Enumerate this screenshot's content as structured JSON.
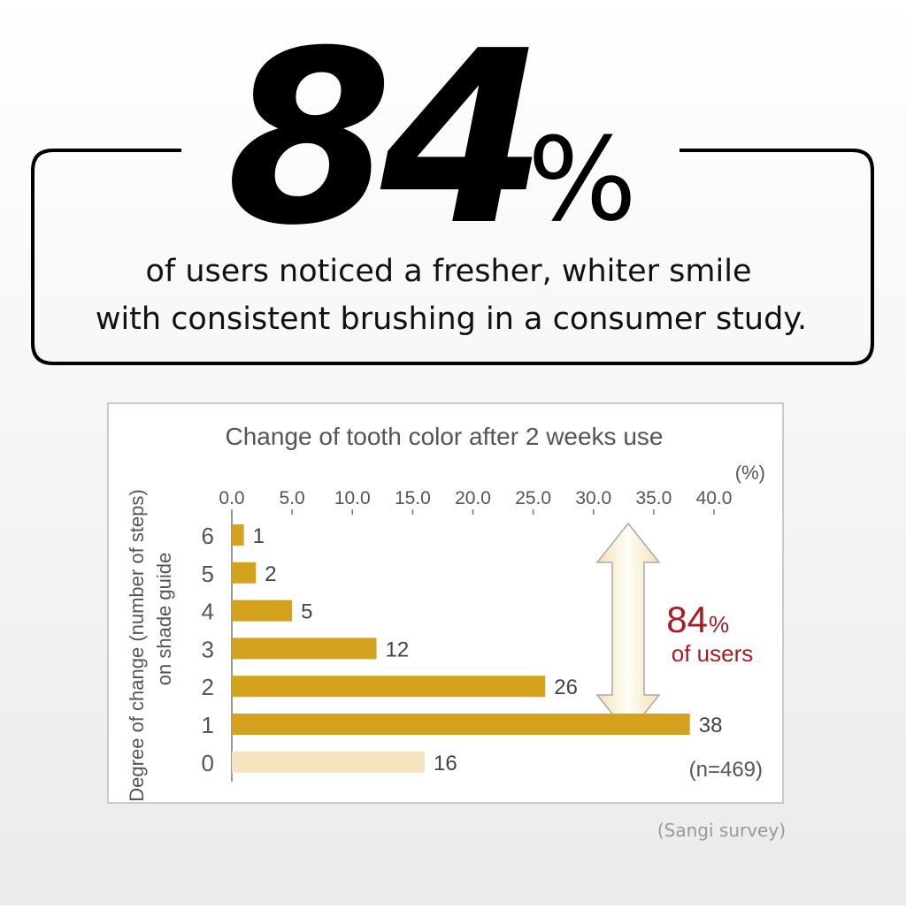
{
  "headline": {
    "number": "84",
    "unit": "%",
    "lines": [
      "of users noticed a fresher, whiter smile",
      "with consistent brushing in a consumer study."
    ]
  },
  "chart_data": {
    "type": "bar",
    "orientation": "horizontal",
    "title": "Change of tooth color after 2 weeks use",
    "x_unit": "(%)",
    "y_label": [
      "Degree of change (number of steps)",
      "on shade guide"
    ],
    "categories": [
      "6",
      "5",
      "4",
      "3",
      "2",
      "1",
      "0"
    ],
    "values": [
      1,
      2,
      5,
      12,
      26,
      38,
      16
    ],
    "colors": [
      "#d4a21c",
      "#d4a21c",
      "#d4a21c",
      "#d4a21c",
      "#d4a21c",
      "#d4a21c",
      "#f5e4c0"
    ],
    "xlim": [
      0,
      40
    ],
    "xticks": [
      {
        "value": 0,
        "label": "0.0"
      },
      {
        "value": 5,
        "label": "5.0"
      },
      {
        "value": 10,
        "label": "10.0"
      },
      {
        "value": 15,
        "label": "15.0"
      },
      {
        "value": 20,
        "label": "20.0"
      },
      {
        "value": 25,
        "label": "25.0"
      },
      {
        "value": 30,
        "label": "30.0"
      },
      {
        "value": 35,
        "label": "35.0"
      },
      {
        "value": 40,
        "label": "40.0"
      }
    ],
    "annotation": {
      "number": "84",
      "unit": "%",
      "text": "of users"
    },
    "note": "(n=469)"
  },
  "source": "(Sangi survey)"
}
